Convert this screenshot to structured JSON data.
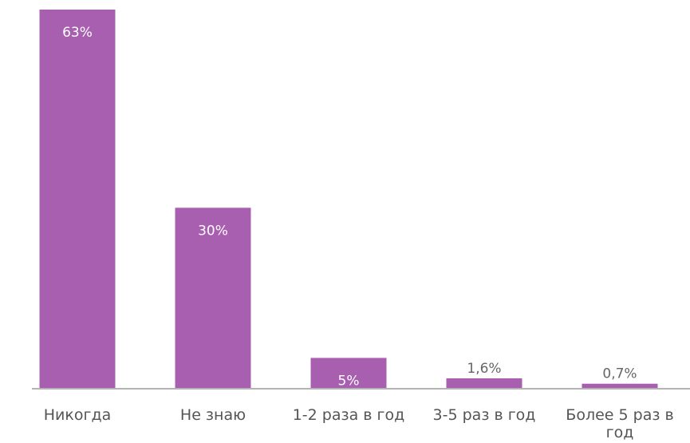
{
  "chart_data": {
    "type": "bar",
    "categories": [
      [
        "Никогда"
      ],
      [
        "Не знаю"
      ],
      [
        "1-2 раза в год"
      ],
      [
        "3-5 раз в год"
      ],
      [
        "Более 5 раз в",
        "год"
      ]
    ],
    "values": [
      63,
      30,
      5,
      1.6,
      0.7
    ],
    "value_labels": [
      "63%",
      "30%",
      "5%",
      "1,6%",
      "0,7%"
    ],
    "ylim": [
      0,
      63
    ],
    "grid": false,
    "bar_color": "#a95fb0",
    "axis_color": "#b3b3b3"
  }
}
